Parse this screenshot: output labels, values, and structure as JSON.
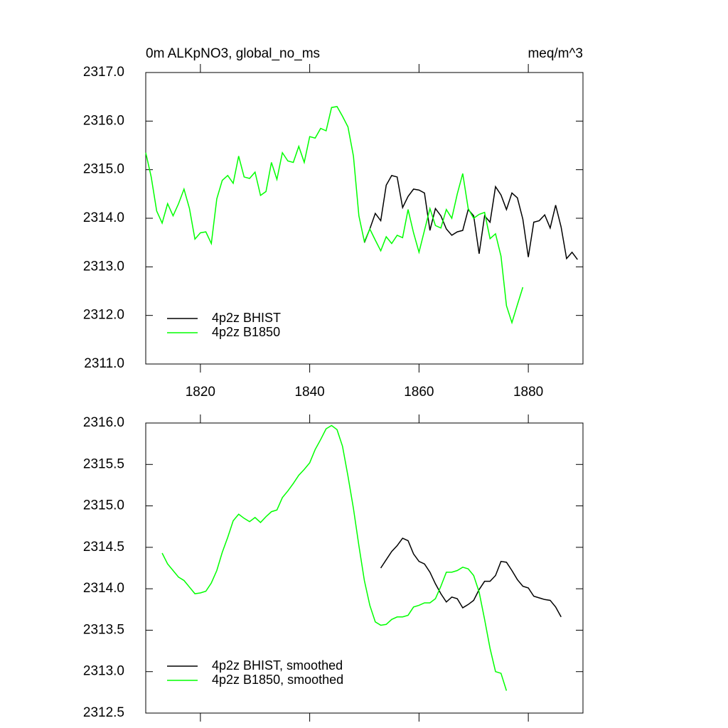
{
  "chart_data": [
    {
      "type": "line",
      "title": "0m ALKpNO3, global_no_ms",
      "subtitle": "meq/m^3",
      "xlim": [
        1810,
        1890
      ],
      "xticks": [
        1820,
        1840,
        1860,
        1880
      ],
      "xtick_labels": true,
      "ylim": [
        2311,
        2317
      ],
      "yticks": [
        {
          "value": 2311,
          "label": "2311.0"
        },
        {
          "value": 2312,
          "label": "2312.0"
        },
        {
          "value": 2313,
          "label": "2313.0"
        },
        {
          "value": 2314,
          "label": "2314.0"
        },
        {
          "value": 2315,
          "label": "2315.0"
        },
        {
          "value": 2316,
          "label": "2316.0"
        },
        {
          "value": 2317,
          "label": "2317.0"
        }
      ],
      "legend": "lower left",
      "series": [
        {
          "name": "4p2z BHIST",
          "color": "#000000",
          "x": [
            1850,
            1851,
            1852,
            1853,
            1854,
            1855,
            1856,
            1857,
            1858,
            1859,
            1860,
            1861,
            1862,
            1863,
            1864,
            1865,
            1866,
            1867,
            1868,
            1869,
            1870,
            1871,
            1872,
            1873,
            1874,
            1875,
            1876,
            1877,
            1878,
            1879,
            1880,
            1881,
            1882,
            1883,
            1884,
            1885,
            1886,
            1887,
            1888,
            1889
          ],
          "values": [
            2313.5,
            2313.78,
            2314.1,
            2313.95,
            2314.68,
            2314.88,
            2314.85,
            2314.22,
            2314.45,
            2314.6,
            2314.58,
            2314.52,
            2313.75,
            2314.2,
            2314.05,
            2313.78,
            2313.65,
            2313.72,
            2313.75,
            2314.18,
            2314.05,
            2313.27,
            2314.05,
            2313.92,
            2314.65,
            2314.48,
            2314.18,
            2314.52,
            2314.42,
            2313.98,
            2313.2,
            2313.92,
            2313.95,
            2314.07,
            2313.8,
            2314.27,
            2313.82,
            2313.17,
            2313.3,
            2313.15
          ]
        },
        {
          "name": "4p2z B1850",
          "color": "#00ff00",
          "x": [
            1810,
            1811,
            1812,
            1813,
            1814,
            1815,
            1816,
            1817,
            1818,
            1819,
            1820,
            1821,
            1822,
            1823,
            1824,
            1825,
            1826,
            1827,
            1828,
            1829,
            1830,
            1831,
            1832,
            1833,
            1834,
            1835,
            1836,
            1837,
            1838,
            1839,
            1840,
            1841,
            1842,
            1843,
            1844,
            1845,
            1846,
            1847,
            1848,
            1849,
            1850,
            1851,
            1852,
            1853,
            1854,
            1855,
            1856,
            1857,
            1858,
            1859,
            1860,
            1861,
            1862,
            1863,
            1864,
            1865,
            1866,
            1867,
            1868,
            1869,
            1870,
            1871,
            1872,
            1873,
            1874,
            1875,
            1876,
            1877,
            1878,
            1879
          ],
          "values": [
            2315.35,
            2314.85,
            2314.15,
            2313.9,
            2314.3,
            2314.05,
            2314.3,
            2314.6,
            2314.2,
            2313.57,
            2313.7,
            2313.72,
            2313.48,
            2314.4,
            2314.78,
            2314.88,
            2314.72,
            2315.28,
            2314.85,
            2314.82,
            2314.95,
            2314.47,
            2314.55,
            2315.15,
            2314.8,
            2315.35,
            2315.18,
            2315.15,
            2315.48,
            2315.15,
            2315.68,
            2315.65,
            2315.85,
            2315.8,
            2316.28,
            2316.3,
            2316.1,
            2315.88,
            2315.28,
            2314.05,
            2313.52,
            2313.78,
            2313.55,
            2313.33,
            2313.62,
            2313.48,
            2313.65,
            2313.6,
            2314.18,
            2313.7,
            2313.3,
            2313.75,
            2314.2,
            2313.85,
            2313.8,
            2314.18,
            2314.0,
            2314.5,
            2314.92,
            2314.2,
            2314.0,
            2314.08,
            2314.12,
            2313.58,
            2313.68,
            2313.22,
            2312.2,
            2311.85,
            2312.22,
            2312.58
          ]
        }
      ]
    },
    {
      "type": "line",
      "xlim": [
        1810,
        1890
      ],
      "xticks": [
        1820,
        1840,
        1860,
        1880
      ],
      "xtick_labels": false,
      "ylim": [
        2312.5,
        2316
      ],
      "yticks": [
        {
          "value": 2312.5,
          "label": "2312.5"
        },
        {
          "value": 2313,
          "label": "2313.0"
        },
        2313.5,
        {
          "value": 2314,
          "label": "2314.0"
        },
        2314.5,
        {
          "value": 2315,
          "label": "2315.0"
        },
        2315.5,
        {
          "value": 2316,
          "label": "2316.0"
        }
      ],
      "legend": "lower left",
      "series": [
        {
          "name": "4p2z BHIST, smoothed",
          "color": "#000000",
          "x": [
            1853,
            1854,
            1855,
            1856,
            1857,
            1858,
            1859,
            1860,
            1861,
            1862,
            1863,
            1864,
            1865,
            1866,
            1867,
            1868,
            1869,
            1870,
            1871,
            1872,
            1873,
            1874,
            1875,
            1876,
            1877,
            1878,
            1879,
            1880,
            1881,
            1882,
            1883,
            1884,
            1885,
            1886
          ],
          "values": [
            2314.25,
            2314.35,
            2314.45,
            2314.52,
            2314.61,
            2314.58,
            2314.42,
            2314.33,
            2314.3,
            2314.2,
            2314.06,
            2313.94,
            2313.84,
            2313.9,
            2313.88,
            2313.77,
            2313.81,
            2313.86,
            2313.99,
            2314.09,
            2314.09,
            2314.16,
            2314.33,
            2314.32,
            2314.22,
            2314.11,
            2314.03,
            2314.01,
            2313.91,
            2313.89,
            2313.87,
            2313.86,
            2313.78,
            2313.66
          ]
        },
        {
          "name": "4p2z B1850, smoothed",
          "color": "#00ff00",
          "x": [
            1813,
            1814,
            1815,
            1816,
            1817,
            1818,
            1819,
            1820,
            1821,
            1822,
            1823,
            1824,
            1825,
            1826,
            1827,
            1828,
            1829,
            1830,
            1831,
            1832,
            1833,
            1834,
            1835,
            1836,
            1837,
            1838,
            1839,
            1840,
            1841,
            1842,
            1843,
            1844,
            1845,
            1846,
            1847,
            1848,
            1849,
            1850,
            1851,
            1852,
            1853,
            1854,
            1855,
            1856,
            1857,
            1858,
            1859,
            1860,
            1861,
            1862,
            1863,
            1864,
            1865,
            1866,
            1867,
            1868,
            1869,
            1870,
            1871,
            1872,
            1873,
            1874,
            1875,
            1876
          ],
          "values": [
            2314.43,
            2314.3,
            2314.22,
            2314.14,
            2314.1,
            2314.02,
            2313.94,
            2313.95,
            2313.97,
            2314.07,
            2314.22,
            2314.44,
            2314.62,
            2314.82,
            2314.9,
            2314.85,
            2314.81,
            2314.86,
            2314.8,
            2314.87,
            2314.93,
            2314.95,
            2315.1,
            2315.18,
            2315.27,
            2315.37,
            2315.44,
            2315.52,
            2315.68,
            2315.8,
            2315.93,
            2315.97,
            2315.92,
            2315.72,
            2315.36,
            2314.97,
            2314.52,
            2314.1,
            2313.8,
            2313.6,
            2313.56,
            2313.57,
            2313.63,
            2313.66,
            2313.66,
            2313.68,
            2313.78,
            2313.8,
            2313.83,
            2313.83,
            2313.88,
            2314.03,
            2314.2,
            2314.2,
            2314.22,
            2314.26,
            2314.24,
            2314.16,
            2313.96,
            2313.63,
            2313.28,
            2313.0,
            2312.98,
            2312.77
          ]
        }
      ]
    }
  ]
}
